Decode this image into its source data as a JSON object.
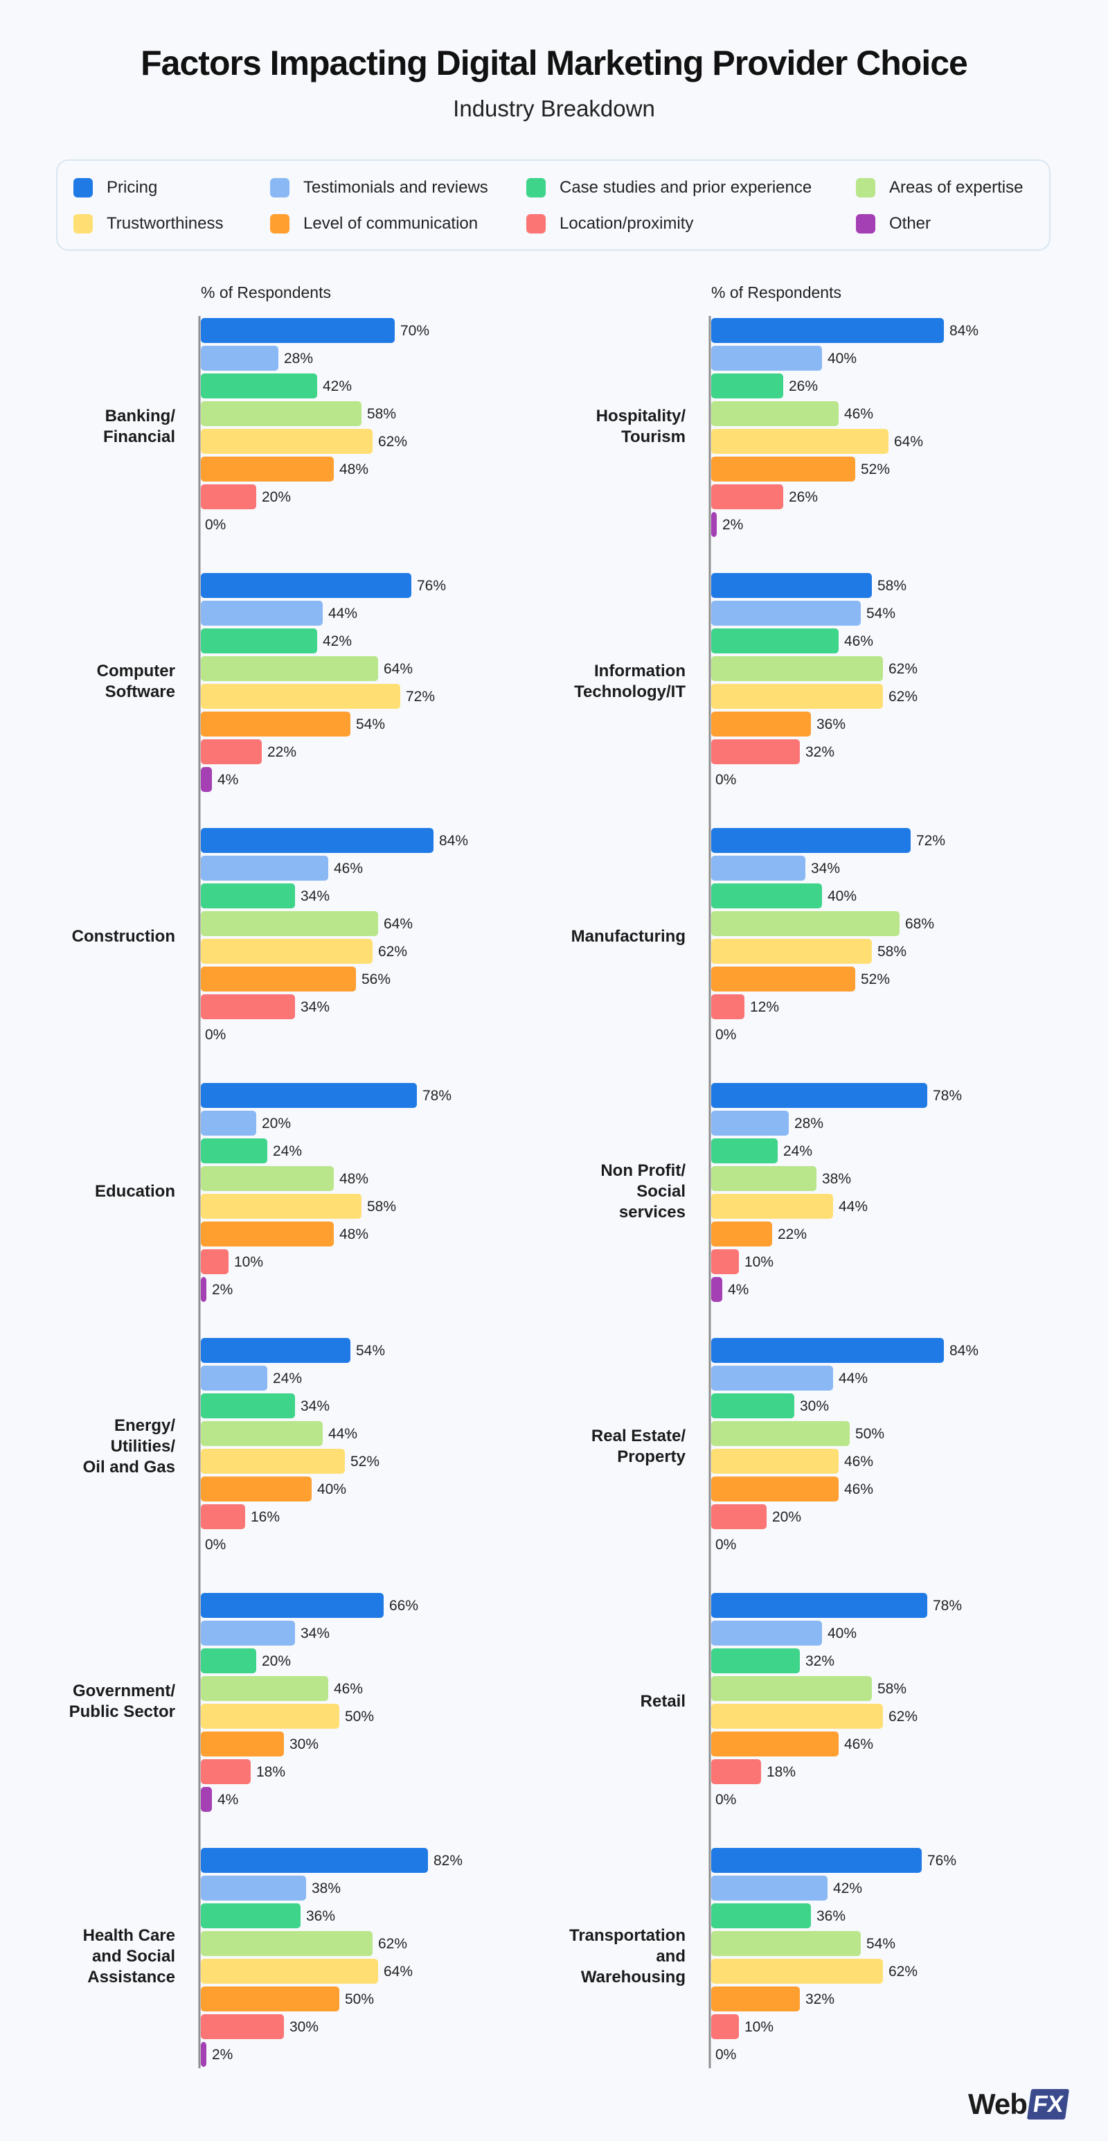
{
  "header": {
    "title": "Factors Impacting Digital Marketing Provider Choice",
    "subtitle": "Industry Breakdown"
  },
  "legend": [
    {
      "label": "Pricing",
      "color": "#1f7ae6"
    },
    {
      "label": "Testimonials and reviews",
      "color": "#8ab8f5"
    },
    {
      "label": "Case studies and prior experience",
      "color": "#3ed48a"
    },
    {
      "label": "Areas of expertise",
      "color": "#b9e68a"
    },
    {
      "label": "Trustworthiness",
      "color": "#ffdf73"
    },
    {
      "label": "Level of communication",
      "color": "#ff9f30"
    },
    {
      "label": "Location/proximity",
      "color": "#fb7575"
    },
    {
      "label": "Other",
      "color": "#a43fb4"
    }
  ],
  "logo": {
    "part1": "Web",
    "part2": "FX"
  },
  "chart_data": [
    {
      "type": "bar",
      "orientation": "horizontal",
      "axis_label": "% of Respondents",
      "xlim": [
        0,
        100
      ],
      "series_names": [
        "Pricing",
        "Testimonials and reviews",
        "Case studies and prior experience",
        "Areas of expertise",
        "Trustworthiness",
        "Level of communication",
        "Location/proximity",
        "Other"
      ],
      "groups": [
        {
          "category": [
            "Banking/",
            "Financial"
          ],
          "values": [
            70,
            28,
            42,
            58,
            62,
            48,
            20,
            0
          ]
        },
        {
          "category": [
            "Computer",
            "Software"
          ],
          "values": [
            76,
            44,
            42,
            64,
            72,
            54,
            22,
            4
          ]
        },
        {
          "category": [
            "Construction"
          ],
          "values": [
            84,
            46,
            34,
            64,
            62,
            56,
            34,
            0
          ]
        },
        {
          "category": [
            "Education"
          ],
          "values": [
            78,
            20,
            24,
            48,
            58,
            48,
            10,
            2
          ]
        },
        {
          "category": [
            "Energy/",
            "Utilities/",
            "Oil and Gas"
          ],
          "values": [
            54,
            24,
            34,
            44,
            52,
            40,
            16,
            0
          ]
        },
        {
          "category": [
            "Government/",
            "Public Sector"
          ],
          "values": [
            66,
            34,
            20,
            46,
            50,
            30,
            18,
            4
          ]
        },
        {
          "category": [
            "Health Care",
            "and Social",
            "Assistance"
          ],
          "values": [
            82,
            38,
            36,
            62,
            64,
            50,
            30,
            2
          ]
        }
      ]
    },
    {
      "type": "bar",
      "orientation": "horizontal",
      "axis_label": "% of Respondents",
      "xlim": [
        0,
        100
      ],
      "series_names": [
        "Pricing",
        "Testimonials and reviews",
        "Case studies and prior experience",
        "Areas of expertise",
        "Trustworthiness",
        "Level of communication",
        "Location/proximity",
        "Other"
      ],
      "groups": [
        {
          "category": [
            "Hospitality/",
            "Tourism"
          ],
          "values": [
            84,
            40,
            26,
            46,
            64,
            52,
            26,
            2
          ]
        },
        {
          "category": [
            "Information",
            "Technology/IT"
          ],
          "values": [
            58,
            54,
            46,
            62,
            62,
            36,
            32,
            0
          ]
        },
        {
          "category": [
            "Manufacturing"
          ],
          "values": [
            72,
            34,
            40,
            68,
            58,
            52,
            12,
            0
          ]
        },
        {
          "category": [
            "Non Profit/",
            "Social",
            "services"
          ],
          "values": [
            78,
            28,
            24,
            38,
            44,
            22,
            10,
            4
          ]
        },
        {
          "category": [
            "Real Estate/",
            "Property"
          ],
          "values": [
            84,
            44,
            30,
            50,
            46,
            46,
            20,
            0
          ]
        },
        {
          "category": [
            "Retail"
          ],
          "values": [
            78,
            40,
            32,
            58,
            62,
            46,
            18,
            0
          ]
        },
        {
          "category": [
            "Transportation",
            "and",
            "Warehousing"
          ],
          "values": [
            76,
            42,
            36,
            54,
            62,
            32,
            10,
            0
          ]
        }
      ]
    }
  ]
}
